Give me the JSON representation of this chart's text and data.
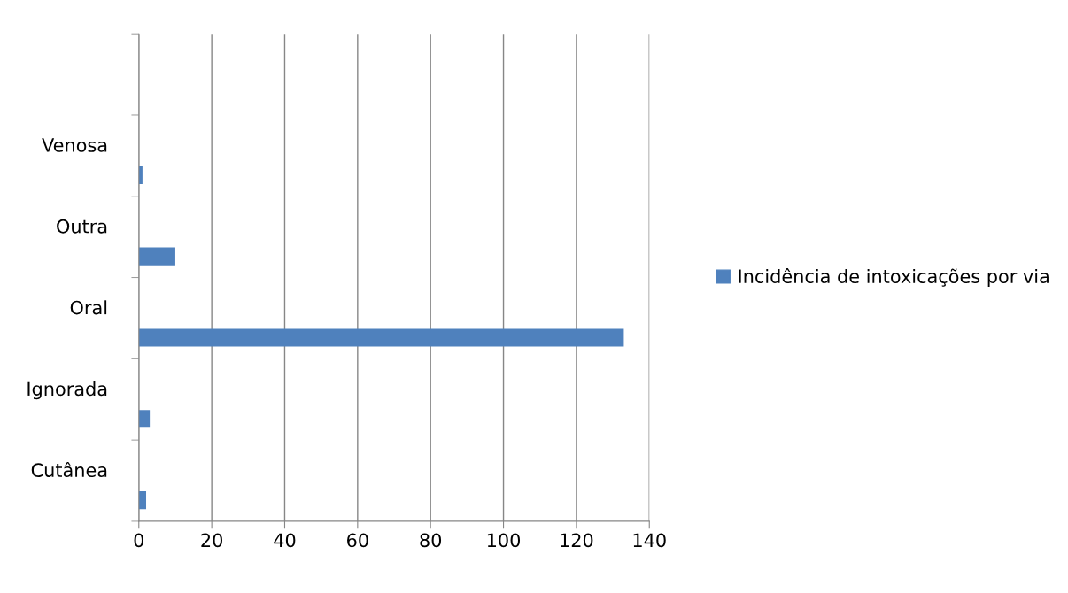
{
  "chart_data": {
    "type": "bar",
    "orientation": "horizontal",
    "categories": [
      null,
      "Venosa",
      "Outra",
      "Oral",
      "Ignorada",
      "Cutânea"
    ],
    "series": [
      {
        "name": "Incidência de intoxicações por via",
        "color": "#4f81bd",
        "values": [
          null,
          1,
          10,
          133,
          3,
          2
        ]
      }
    ],
    "xlim": [
      0,
      140
    ],
    "xticks": [
      0,
      20,
      40,
      60,
      80,
      100,
      120,
      140
    ],
    "grid": "x",
    "legend": "right"
  }
}
